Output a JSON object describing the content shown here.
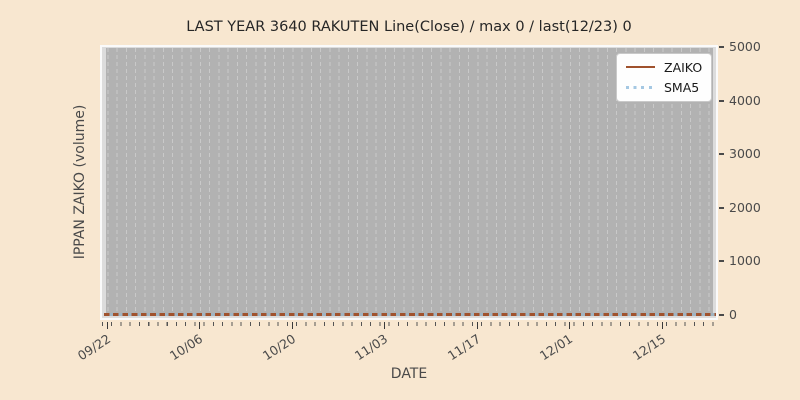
{
  "figure": {
    "title": "LAST YEAR 3640 RAKUTEN Line(Close) / max 0 / last(12/23) 0",
    "background_color": "#f8e7d0"
  },
  "axes": {
    "xlabel": "DATE",
    "ylabel": "IPPAN ZAIKO (volume)",
    "x_ticklabels": [
      "09/22",
      "10/06",
      "10/20",
      "11/03",
      "11/17",
      "12/01",
      "12/15"
    ],
    "y_ticklabels": [
      "0",
      "1000",
      "2000",
      "3000",
      "4000",
      "5000"
    ],
    "plot_area_color": "#b2b2b2",
    "axes_margin_color": "#dcdcdc",
    "gridline_color": "#c9c9c9",
    "grid_style": "vertical dashed gridlines, one per trading day"
  },
  "legend": {
    "position": "upper right",
    "items": [
      {
        "label": "ZAIKO",
        "color": "#a0522d",
        "style": "solid"
      },
      {
        "label": "SMA5",
        "color": "#a5c8e3",
        "style": "dotted"
      }
    ]
  },
  "chart_data": {
    "type": "line",
    "title": "LAST YEAR 3640 RAKUTEN Line(Close) / max 0 / last(12/23) 0",
    "xlabel": "DATE",
    "ylabel": "IPPAN ZAIKO (volume)",
    "x_tick_labels": [
      "09/22",
      "10/06",
      "10/20",
      "11/03",
      "11/17",
      "12/01",
      "12/15"
    ],
    "x_range": [
      "09/22",
      "12/23"
    ],
    "ylim": [
      0,
      5000
    ],
    "y_ticks": [
      0,
      1000,
      2000,
      3000,
      4000,
      5000
    ],
    "series": [
      {
        "name": "ZAIKO",
        "color": "#a0522d",
        "style": "solid",
        "x": [
          "09/22",
          "10/06",
          "10/20",
          "11/03",
          "11/17",
          "12/01",
          "12/15",
          "12/23"
        ],
        "y": [
          0,
          0,
          0,
          0,
          0,
          0,
          0,
          0
        ],
        "note": "flat at 0 for every trading day in range"
      },
      {
        "name": "SMA5",
        "color": "#a5c8e3",
        "style": "dotted",
        "x": [
          "09/22",
          "10/06",
          "10/20",
          "11/03",
          "11/17",
          "12/01",
          "12/15",
          "12/23"
        ],
        "y": [
          0,
          0,
          0,
          0,
          0,
          0,
          0,
          0
        ],
        "note": "flat at 0, overlaps ZAIKO line"
      }
    ],
    "stats": {
      "max": 0,
      "last_date": "12/23",
      "last_value": 0
    },
    "legend_position": "upper right",
    "grid": "vertical dashed daily gridlines only"
  }
}
